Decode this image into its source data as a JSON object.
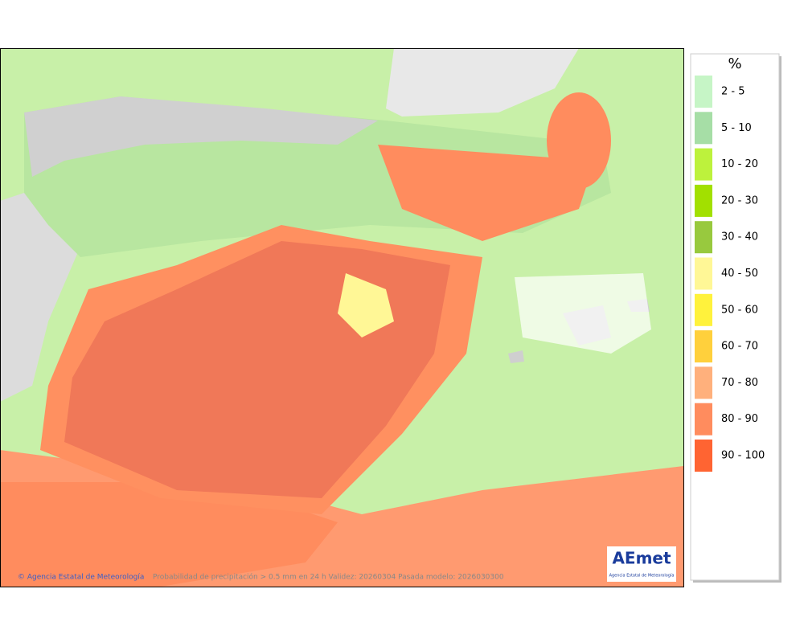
{
  "legend": {
    "title": "%",
    "items": [
      {
        "label": "2 - 5",
        "color": "#c6f5c6"
      },
      {
        "label": "5 - 10",
        "color": "#a6dea6"
      },
      {
        "label": "10 - 20",
        "color": "#bdf23c"
      },
      {
        "label": "20 - 30",
        "color": "#a2e000"
      },
      {
        "label": "30 - 40",
        "color": "#98c93e"
      },
      {
        "label": "40 - 50",
        "color": "#fff796"
      },
      {
        "label": "50 - 60",
        "color": "#fff23c"
      },
      {
        "label": "60 - 70",
        "color": "#ffd03c"
      },
      {
        "label": "70 - 80",
        "color": "#ffb07c"
      },
      {
        "label": "80 - 90",
        "color": "#ff8c5e"
      },
      {
        "label": "90 - 100",
        "color": "#ff6432"
      }
    ]
  },
  "credits": "© Agencia Estatal de Meteorología",
  "caption": "Probabilidad de precipitación > 0.5 mm en 24 h Validez: 20260304 Pasada modelo: 2026030300",
  "logo": {
    "name": "AEmet",
    "subtitle": "Agencia Estatal de Meteorología"
  }
}
